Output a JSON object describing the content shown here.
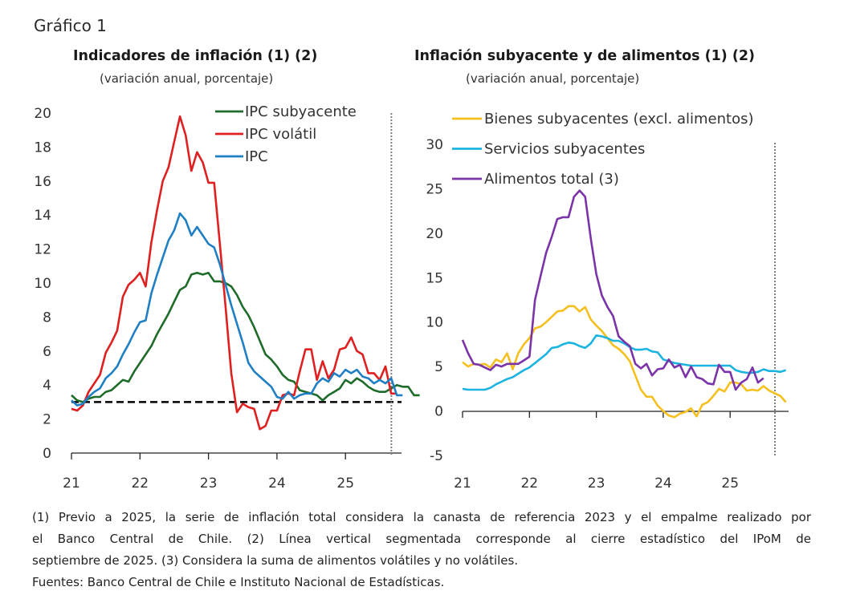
{
  "figure_label": "Gráfico 1",
  "chart_data": [
    {
      "type": "line",
      "title": "Indicadores de inflación (1) (2)",
      "subtitle": "(variación anual, porcentaje)",
      "xlabel": "",
      "ylabel": "",
      "x_start": "2021-01",
      "x_ticks": [
        "21",
        "22",
        "23",
        "24",
        "25"
      ],
      "y_ticks": [
        "0",
        "2",
        "4",
        "6",
        "8",
        "10",
        "12",
        "14",
        "16",
        "18",
        "20"
      ],
      "ylim": [
        0,
        20
      ],
      "xlim_years": [
        2021,
        2025.83
      ],
      "grid": false,
      "legend_position": "top-center",
      "reference_line": {
        "value": 3,
        "style": "dashed",
        "color": "#000000"
      },
      "vertical_line": {
        "x_year": 2025.67,
        "style": "dotted",
        "color": "#808080"
      },
      "series": [
        {
          "name": "IPC subyacente",
          "color": "#1e6b2a",
          "values": [
            3.4,
            3.1,
            3.0,
            3.2,
            3.3,
            3.3,
            3.6,
            3.7,
            4.0,
            4.3,
            4.2,
            4.8,
            5.3,
            5.8,
            6.3,
            7.0,
            7.6,
            8.2,
            8.9,
            9.6,
            9.8,
            10.5,
            10.6,
            10.5,
            10.6,
            10.1,
            10.1,
            10.0,
            9.8,
            9.3,
            8.6,
            8.1,
            7.4,
            6.6,
            5.8,
            5.5,
            5.1,
            4.6,
            4.3,
            4.2,
            3.7,
            3.6,
            3.5,
            3.4,
            3.1,
            3.4,
            3.6,
            3.8,
            4.3,
            4.1,
            4.4,
            4.2,
            3.9,
            3.7,
            3.6,
            3.6,
            3.8,
            4.0,
            3.9,
            3.9,
            3.4,
            3.4
          ],
          "note": "monthly values from Jan 2021"
        },
        {
          "name": "IPC volátil",
          "color": "#e02020",
          "values": [
            2.6,
            2.5,
            2.8,
            3.6,
            4.1,
            4.6,
            5.9,
            6.5,
            7.2,
            9.2,
            9.9,
            10.2,
            10.6,
            9.8,
            12.4,
            14.3,
            16.0,
            16.8,
            18.3,
            19.8,
            18.7,
            16.6,
            17.7,
            17.1,
            15.9,
            15.9,
            12.3,
            8.6,
            4.7,
            2.4,
            2.9,
            2.7,
            2.6,
            1.4,
            1.6,
            2.5,
            2.5,
            3.4,
            3.5,
            3.4,
            4.8,
            6.1,
            6.1,
            4.3,
            5.4,
            4.4,
            4.9,
            6.1,
            6.2,
            6.8,
            6.0,
            5.8,
            4.7,
            4.7,
            4.3,
            5.1,
            3.5,
            3.5
          ]
        },
        {
          "name": "IPC",
          "color": "#1f7fc4",
          "values": [
            3.1,
            2.8,
            2.9,
            3.3,
            3.6,
            3.8,
            4.4,
            4.7,
            5.1,
            5.8,
            6.4,
            7.1,
            7.7,
            7.8,
            9.4,
            10.5,
            11.5,
            12.5,
            13.1,
            14.1,
            13.7,
            12.8,
            13.3,
            12.8,
            12.3,
            12.1,
            11.1,
            9.9,
            8.7,
            7.6,
            6.5,
            5.3,
            4.8,
            4.5,
            4.2,
            3.9,
            3.3,
            3.2,
            3.6,
            3.2,
            3.4,
            3.5,
            3.5,
            4.1,
            4.4,
            4.2,
            4.7,
            4.5,
            4.9,
            4.7,
            4.9,
            4.5,
            4.4,
            4.1,
            4.3,
            4.1,
            4.4,
            3.4,
            3.4
          ]
        }
      ]
    },
    {
      "type": "line",
      "title": "Inflación subyacente y de alimentos (1) (2)",
      "subtitle": "(variación anual, porcentaje)",
      "xlabel": "",
      "ylabel": "",
      "x_start": "2021-01",
      "x_ticks": [
        "21",
        "22",
        "23",
        "24",
        "25"
      ],
      "y_ticks": [
        "-5",
        "0",
        "5",
        "10",
        "15",
        "20",
        "25",
        "30"
      ],
      "ylim": [
        -5,
        30
      ],
      "xlim_years": [
        2021,
        2025.83
      ],
      "grid": false,
      "legend_position": "top-left",
      "vertical_line": {
        "x_year": 2025.67,
        "style": "dotted",
        "color": "#808080"
      },
      "series": [
        {
          "name": "Bienes subyacentes (excl. alimentos)",
          "color": "#f5bf1e",
          "values": [
            5.5,
            5.0,
            5.3,
            5.2,
            5.3,
            4.9,
            5.8,
            5.5,
            6.5,
            4.7,
            6.5,
            7.5,
            8.2,
            9.3,
            9.5,
            10.0,
            10.6,
            11.2,
            11.3,
            11.8,
            11.8,
            11.2,
            11.7,
            10.3,
            9.6,
            9.0,
            8.2,
            7.4,
            7.0,
            6.4,
            5.6,
            4.0,
            2.4,
            1.6,
            1.6,
            0.6,
            0.0,
            -0.5,
            -0.7,
            -0.3,
            -0.1,
            0.3,
            -0.6,
            0.7,
            1.0,
            1.7,
            2.5,
            2.2,
            3.2,
            3.2,
            3.0,
            2.3,
            2.4,
            2.3,
            2.8,
            2.3,
            2.0,
            1.7,
            1.0
          ]
        },
        {
          "name": "Servicios subyacentes",
          "color": "#1bb4e0",
          "values": [
            2.5,
            2.4,
            2.4,
            2.4,
            2.4,
            2.6,
            3.0,
            3.3,
            3.6,
            3.8,
            4.2,
            4.6,
            4.9,
            5.4,
            5.9,
            6.4,
            7.1,
            7.2,
            7.5,
            7.7,
            7.6,
            7.3,
            7.1,
            7.6,
            8.5,
            8.4,
            8.2,
            7.9,
            7.9,
            7.6,
            7.2,
            6.9,
            6.9,
            7.0,
            6.7,
            6.6,
            5.8,
            5.6,
            5.4,
            5.3,
            5.2,
            5.1,
            5.1,
            5.1,
            5.1,
            5.1,
            5.1,
            5.1,
            5.1,
            4.6,
            4.4,
            4.3,
            4.3,
            4.4,
            4.7,
            4.5,
            4.5,
            4.4,
            4.6
          ]
        },
        {
          "name": "Alimentos total (3)",
          "color": "#7a33a8",
          "values": [
            8.0,
            6.5,
            5.3,
            5.2,
            4.9,
            4.6,
            5.2,
            5.0,
            5.3,
            5.3,
            5.3,
            5.7,
            6.1,
            12.5,
            15.2,
            17.8,
            19.6,
            21.6,
            21.8,
            21.8,
            24.1,
            24.8,
            24.1,
            19.4,
            15.4,
            13.0,
            11.7,
            10.7,
            8.4,
            7.8,
            7.3,
            5.3,
            4.8,
            5.3,
            4.0,
            4.7,
            4.8,
            5.8,
            4.9,
            5.2,
            3.8,
            5.0,
            3.8,
            3.6,
            3.1,
            3.0,
            5.2,
            4.4,
            4.4,
            2.4,
            3.2,
            3.6,
            4.9,
            3.2,
            3.7
          ]
        }
      ]
    }
  ],
  "notes": {
    "line1": "(1) Previo a 2025, la serie de inflación total considera la canasta de referencia 2023 y el empalme realizado por",
    "line2": "el Banco Central de Chile. (2) Línea vertical segmentada corresponde al cierre estadístico del IPoM de",
    "line3": "septiembre de 2025. (3) Considera la suma de alimentos volátiles y no volátiles.",
    "sources": "Fuentes: Banco Central de Chile e Instituto Nacional de Estadísticas."
  }
}
